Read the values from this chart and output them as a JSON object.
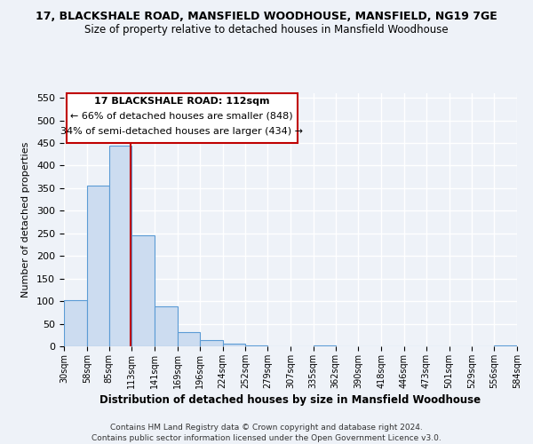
{
  "title": "17, BLACKSHALE ROAD, MANSFIELD WOODHOUSE, MANSFIELD, NG19 7GE",
  "subtitle": "Size of property relative to detached houses in Mansfield Woodhouse",
  "xlabel": "Distribution of detached houses by size in Mansfield Woodhouse",
  "ylabel": "Number of detached properties",
  "bar_edges": [
    30,
    58,
    85,
    113,
    141,
    169,
    196,
    224,
    252,
    279,
    307,
    335,
    362,
    390,
    418,
    446,
    473,
    501,
    529,
    556,
    584
  ],
  "bar_heights": [
    103,
    355,
    445,
    246,
    88,
    31,
    14,
    5,
    1,
    0,
    0,
    2,
    0,
    0,
    0,
    0,
    0,
    0,
    0,
    1
  ],
  "bar_color": "#ccdcf0",
  "bar_edgecolor": "#5b9bd5",
  "vline_x": 112,
  "vline_color": "#c00000",
  "ylim": [
    0,
    560
  ],
  "yticks": [
    0,
    50,
    100,
    150,
    200,
    250,
    300,
    350,
    400,
    450,
    500,
    550
  ],
  "annotation_box_title": "17 BLACKSHALE ROAD: 112sqm",
  "annotation_line1": "← 66% of detached houses are smaller (848)",
  "annotation_line2": "34% of semi-detached houses are larger (434) →",
  "annotation_box_color": "#ffffff",
  "annotation_box_edgecolor": "#c00000",
  "footer1": "Contains HM Land Registry data © Crown copyright and database right 2024.",
  "footer2": "Contains public sector information licensed under the Open Government Licence v3.0.",
  "tick_labels": [
    "30sqm",
    "58sqm",
    "85sqm",
    "113sqm",
    "141sqm",
    "169sqm",
    "196sqm",
    "224sqm",
    "252sqm",
    "279sqm",
    "307sqm",
    "335sqm",
    "362sqm",
    "390sqm",
    "418sqm",
    "446sqm",
    "473sqm",
    "501sqm",
    "529sqm",
    "556sqm",
    "584sqm"
  ],
  "background_color": "#eef2f8",
  "grid_color": "#ffffff"
}
